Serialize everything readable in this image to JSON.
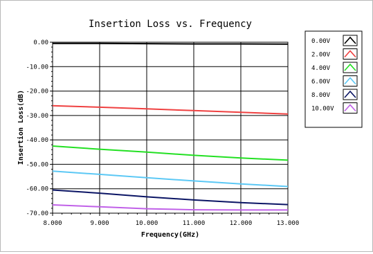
{
  "chart_data": {
    "type": "line",
    "title": "Insertion Loss vs. Frequency",
    "xlabel": "Frequency(GHz)",
    "ylabel": "Insertion Loss(dB)",
    "xlim": [
      8.0,
      13.0
    ],
    "ylim": [
      -70.0,
      0.0
    ],
    "x_ticks": [
      8.0,
      9.0,
      10.0,
      11.0,
      12.0,
      13.0
    ],
    "x_tick_labels": [
      "8.000",
      "9.000",
      "10.000",
      "11.000",
      "12.000",
      "13.000"
    ],
    "y_ticks": [
      0,
      -10,
      -20,
      -30,
      -40,
      -50,
      -60,
      -70
    ],
    "y_tick_labels": [
      "0.00",
      "-10.00",
      "-20.00",
      "-30.00",
      "-40.00",
      "-50.00",
      "-60.00",
      "-70.00"
    ],
    "grid": true,
    "legend_position": "right",
    "x": [
      8.0,
      9.0,
      10.0,
      11.0,
      12.0,
      13.0
    ],
    "series": [
      {
        "name": "0.00V",
        "color": "#000000",
        "values": [
          -0.5,
          -0.5,
          -0.6,
          -0.7,
          -0.7,
          -0.8
        ]
      },
      {
        "name": "2.00V",
        "color": "#ef4040",
        "values": [
          -26.0,
          -26.6,
          -27.3,
          -28.0,
          -28.7,
          -29.4
        ]
      },
      {
        "name": "4.00V",
        "color": "#22e022",
        "values": [
          -42.5,
          -43.8,
          -45.0,
          -46.3,
          -47.4,
          -48.3
        ]
      },
      {
        "name": "6.00V",
        "color": "#5bc8f5",
        "values": [
          -52.8,
          -54.1,
          -55.5,
          -56.8,
          -58.0,
          -59.1
        ]
      },
      {
        "name": "8.00V",
        "color": "#0a1464",
        "values": [
          -60.5,
          -61.8,
          -63.3,
          -64.6,
          -65.7,
          -66.5
        ]
      },
      {
        "name": "10.00V",
        "color": "#c060e8",
        "values": [
          -66.6,
          -67.4,
          -68.2,
          -68.6,
          -68.7,
          -68.7
        ]
      }
    ]
  }
}
